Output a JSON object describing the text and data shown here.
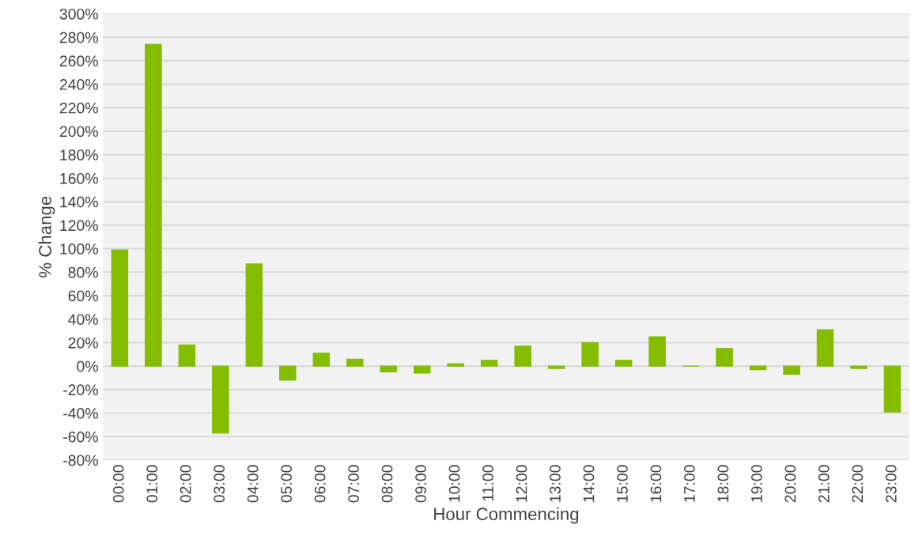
{
  "chart_data": {
    "type": "bar",
    "xlabel": "Hour Commencing",
    "ylabel": "% Change",
    "categories": [
      "00:00",
      "01:00",
      "02:00",
      "03:00",
      "04:00",
      "05:00",
      "06:00",
      "07:00",
      "08:00",
      "09:00",
      "10:00",
      "11:00",
      "12:00",
      "13:00",
      "14:00",
      "15:00",
      "16:00",
      "17:00",
      "18:00",
      "19:00",
      "20:00",
      "21:00",
      "22:00",
      "23:00"
    ],
    "values": [
      99,
      274,
      18,
      -57,
      87,
      -12,
      11,
      6,
      -5,
      -6,
      2,
      5,
      17,
      -2,
      20,
      5,
      25,
      0,
      15,
      -3,
      -7,
      31,
      -2,
      -39
    ],
    "color": "#84bd00",
    "ylim": [
      -80,
      300
    ],
    "yticks": [
      {
        "value": -80,
        "label": "-80%"
      },
      {
        "value": -60,
        "label": "-60%"
      },
      {
        "value": -40,
        "label": "-40%"
      },
      {
        "value": -20,
        "label": "-20%"
      },
      {
        "value": 0,
        "label": "0%"
      },
      {
        "value": 20,
        "label": "20%"
      },
      {
        "value": 40,
        "label": "40%"
      },
      {
        "value": 60,
        "label": "60%"
      },
      {
        "value": 80,
        "label": "80%"
      },
      {
        "value": 100,
        "label": "100%"
      },
      {
        "value": 120,
        "label": "120%"
      },
      {
        "value": 140,
        "label": "140%"
      },
      {
        "value": 160,
        "label": "160%"
      },
      {
        "value": 180,
        "label": "180%"
      },
      {
        "value": 200,
        "label": "200%"
      },
      {
        "value": 220,
        "label": "220%"
      },
      {
        "value": 240,
        "label": "240%"
      },
      {
        "value": 260,
        "label": "260%"
      },
      {
        "value": 280,
        "label": "280%"
      },
      {
        "value": 300,
        "label": "300%"
      }
    ],
    "grid": "y",
    "legend": false
  }
}
